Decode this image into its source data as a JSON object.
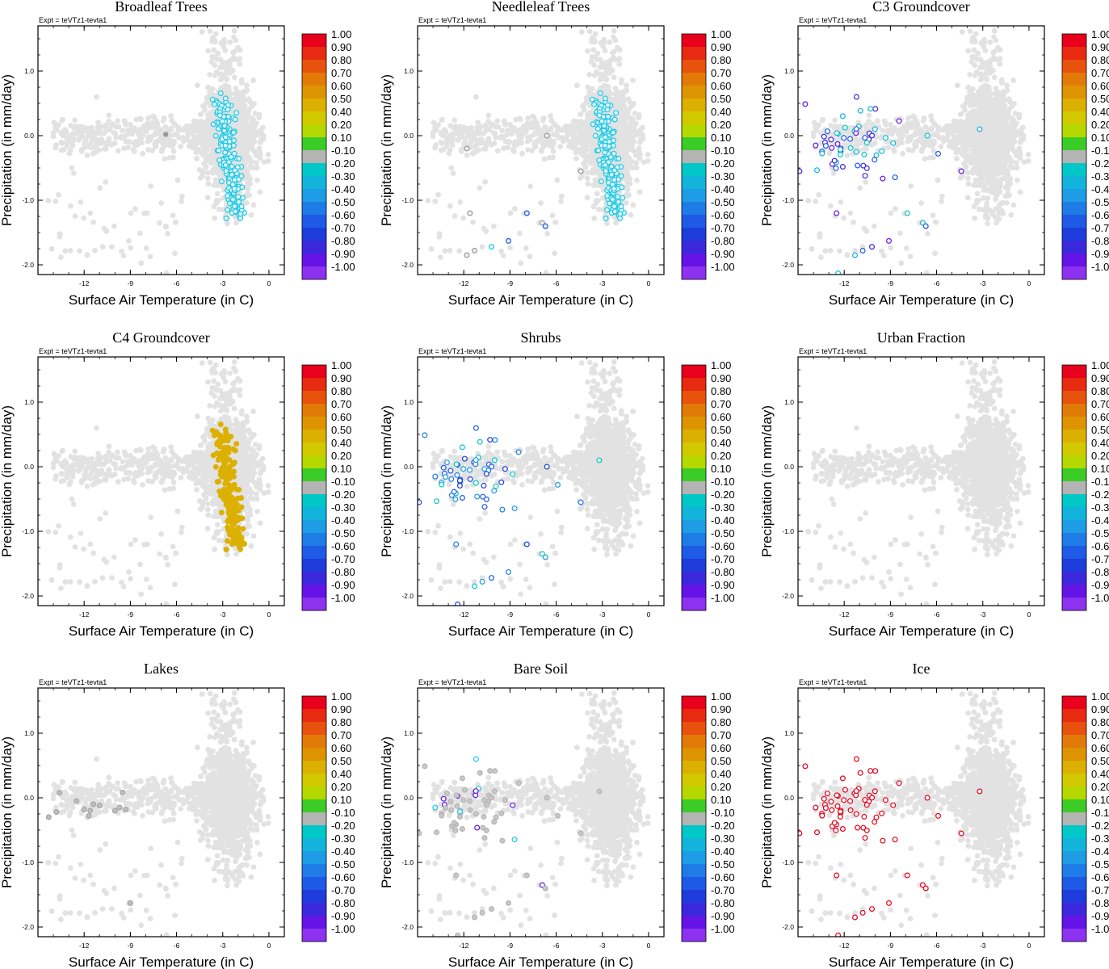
{
  "figure": {
    "expt_label": "Expt = teVTz1-tevta1",
    "x_axis_label": "Surface Air Temperature (in C)",
    "y_axis_label": "Precipitation (in mm/day)",
    "x_ticks": [
      "-12",
      "-9",
      "-6",
      "-3",
      "0"
    ],
    "y_ticks": [
      "1.0",
      "0.0",
      "-1.0",
      "-2.0"
    ]
  },
  "colorbar": {
    "labels": [
      "1.00",
      "0.90",
      "0.80",
      "0.70",
      "0.60",
      "0.50",
      "0.40",
      "0.20",
      "0.10",
      "-0.10",
      "-0.20",
      "-0.30",
      "-0.40",
      "-0.50",
      "-0.60",
      "-0.70",
      "-0.80",
      "-0.90",
      "-1.00"
    ],
    "colors": [
      "#e8001c",
      "#e82a10",
      "#e8520c",
      "#e27a08",
      "#de9400",
      "#dcb000",
      "#d2c800",
      "#b4d800",
      "#3ccc28",
      "#b4b4b4",
      "#00c8c8",
      "#12b4dc",
      "#1e9ce6",
      "#1e7ce6",
      "#1e5ae6",
      "#1e3cdc",
      "#3c28dc",
      "#6414e6",
      "#8c32f0"
    ]
  },
  "chart_data": [
    {
      "type": "scatter",
      "title": "Broadleaf Trees",
      "xlabel": "Surface Air Temperature (in C)",
      "ylabel": "Precipitation (in mm/day)",
      "xlim": [
        -15,
        1
      ],
      "ylim": [
        -2.15,
        1.7
      ],
      "highlight": "main",
      "highlight_value": "-0.20"
    },
    {
      "type": "scatter",
      "title": "Needleleaf Trees",
      "xlabel": "Surface Air Temperature (in C)",
      "ylabel": "Precipitation (in mm/day)",
      "xlim": [
        -15,
        1
      ],
      "ylim": [
        -2.15,
        1.7
      ],
      "highlight": "main",
      "highlight_value": "-0.20"
    },
    {
      "type": "scatter",
      "title": "C3 Groundcover",
      "xlabel": "Surface Air Temperature (in C)",
      "ylabel": "Precipitation (in mm/day)",
      "xlim": [
        -15,
        1
      ],
      "ylim": [
        -2.15,
        1.7
      ],
      "highlight": "cold",
      "highlight_value": "-0.20 to -0.90"
    },
    {
      "type": "scatter",
      "title": "C4 Groundcover",
      "xlabel": "Surface Air Temperature (in C)",
      "ylabel": "Precipitation (in mm/day)",
      "xlim": [
        -15,
        1
      ],
      "ylim": [
        -2.15,
        1.7
      ],
      "highlight": "main",
      "highlight_value": "0.50"
    },
    {
      "type": "scatter",
      "title": "Shrubs",
      "xlabel": "Surface Air Temperature (in C)",
      "ylabel": "Precipitation (in mm/day)",
      "xlim": [
        -15,
        1
      ],
      "ylim": [
        -2.15,
        1.7
      ],
      "highlight": "cold",
      "highlight_value": "-0.20 to -0.70"
    },
    {
      "type": "scatter",
      "title": "Urban Fraction",
      "xlabel": "Surface Air Temperature (in C)",
      "ylabel": "Precipitation (in mm/day)",
      "xlim": [
        -15,
        1
      ],
      "ylim": [
        -2.15,
        1.7
      ],
      "highlight": "none",
      "highlight_value": ""
    },
    {
      "type": "scatter",
      "title": "Lakes",
      "xlabel": "Surface Air Temperature (in C)",
      "ylabel": "Precipitation (in mm/day)",
      "xlim": [
        -15,
        1
      ],
      "ylim": [
        -2.15,
        1.7
      ],
      "highlight": "lakes",
      "highlight_value": "-0.10"
    },
    {
      "type": "scatter",
      "title": "Bare Soil",
      "xlabel": "Surface Air Temperature (in C)",
      "ylabel": "Precipitation (in mm/day)",
      "xlim": [
        -15,
        1
      ],
      "ylim": [
        -2.15,
        1.7
      ],
      "highlight": "cold",
      "highlight_value": "-0.10"
    },
    {
      "type": "scatter",
      "title": "Ice",
      "xlabel": "Surface Air Temperature (in C)",
      "ylabel": "Precipitation (in mm/day)",
      "xlim": [
        -15,
        1
      ],
      "ylim": [
        -2.15,
        1.7
      ],
      "highlight": "cold",
      "highlight_value": "1.00"
    }
  ]
}
